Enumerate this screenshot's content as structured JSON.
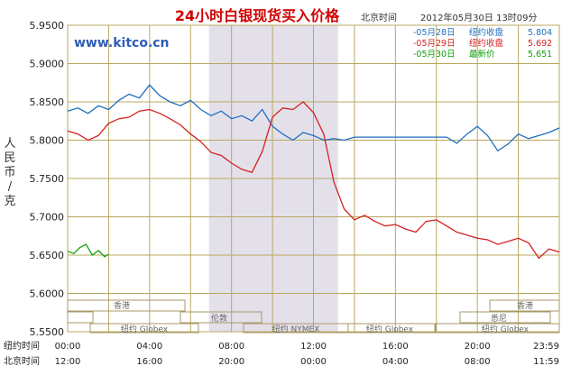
{
  "header": {
    "title": "24小时白银现货买入价格",
    "time_label": "北京时间",
    "timestamp": "2012年05月30日 13时09分"
  },
  "brand": {
    "site": "www.kitco.cn"
  },
  "ylabel": "人民币/克",
  "legend": [
    {
      "date": "05月28日",
      "label": "纽约收盘",
      "value": "5.804",
      "color": "#1f6fbf"
    },
    {
      "date": "05月29日",
      "label": "纽约收盘",
      "value": "5.692",
      "color": "#d42020"
    },
    {
      "date": "05月30日",
      "label": "最新价",
      "value": "5.651",
      "color": "#10a010"
    }
  ],
  "markets": {
    "hongkong": "香港",
    "ny_globex": "纽约 Globex",
    "london": "伦敦",
    "ny_nymex": "纽约 NYMEX",
    "sydney": "悉尼"
  },
  "xaxis": {
    "row1_label": "纽约时间",
    "row2_label": "北京时间",
    "row1": [
      "00:00",
      "04:00",
      "08:00",
      "12:00",
      "16:00",
      "20:00",
      "23:59"
    ],
    "row2": [
      "12:00",
      "16:00",
      "20:00",
      "00:00",
      "04:00",
      "08:00",
      "11:59"
    ]
  },
  "chart_data": {
    "type": "line",
    "title": "24小时白银现货买入价格",
    "ylabel": "人民币/克",
    "ylim": [
      5.55,
      5.95
    ],
    "xlim": [
      0,
      24
    ],
    "x_unit": "hours (New York time, 00:00–23:59)",
    "yticks": [
      "5.9500",
      "5.9000",
      "5.8500",
      "5.8000",
      "5.7500",
      "5.7000",
      "5.6500",
      "5.6000",
      "5.5500"
    ],
    "grid": true,
    "shaded_region": {
      "from": 6.9,
      "to": 13.2
    },
    "series": [
      {
        "name": "05月28日",
        "color": "#1f6fbf",
        "points": [
          [
            0,
            5.838
          ],
          [
            0.5,
            5.842
          ],
          [
            1,
            5.835
          ],
          [
            1.5,
            5.845
          ],
          [
            2,
            5.84
          ],
          [
            2.5,
            5.852
          ],
          [
            3,
            5.86
          ],
          [
            3.5,
            5.855
          ],
          [
            4,
            5.872
          ],
          [
            4.5,
            5.858
          ],
          [
            5,
            5.85
          ],
          [
            5.5,
            5.845
          ],
          [
            6,
            5.852
          ],
          [
            6.5,
            5.84
          ],
          [
            7,
            5.832
          ],
          [
            7.5,
            5.838
          ],
          [
            8,
            5.828
          ],
          [
            8.5,
            5.832
          ],
          [
            9,
            5.825
          ],
          [
            9.5,
            5.84
          ],
          [
            10,
            5.818
          ],
          [
            10.5,
            5.808
          ],
          [
            11,
            5.8
          ],
          [
            11.5,
            5.81
          ],
          [
            12,
            5.806
          ],
          [
            12.5,
            5.8
          ],
          [
            13,
            5.802
          ],
          [
            13.5,
            5.8
          ],
          [
            14,
            5.804
          ],
          [
            15,
            5.804
          ],
          [
            16,
            5.804
          ],
          [
            17,
            5.804
          ],
          [
            18,
            5.804
          ],
          [
            18.5,
            5.804
          ],
          [
            19,
            5.796
          ],
          [
            19.5,
            5.808
          ],
          [
            20,
            5.818
          ],
          [
            20.5,
            5.806
          ],
          [
            21,
            5.786
          ],
          [
            21.5,
            5.795
          ],
          [
            22,
            5.808
          ],
          [
            22.5,
            5.802
          ],
          [
            23,
            5.806
          ],
          [
            23.5,
            5.81
          ],
          [
            24,
            5.816
          ]
        ]
      },
      {
        "name": "05月29日",
        "color": "#d42020",
        "points": [
          [
            0,
            5.812
          ],
          [
            0.5,
            5.808
          ],
          [
            1,
            5.8
          ],
          [
            1.5,
            5.806
          ],
          [
            2,
            5.822
          ],
          [
            2.5,
            5.828
          ],
          [
            3,
            5.83
          ],
          [
            3.5,
            5.838
          ],
          [
            4,
            5.84
          ],
          [
            4.5,
            5.835
          ],
          [
            5,
            5.828
          ],
          [
            5.5,
            5.82
          ],
          [
            6,
            5.808
          ],
          [
            6.5,
            5.798
          ],
          [
            7,
            5.784
          ],
          [
            7.5,
            5.78
          ],
          [
            8,
            5.77
          ],
          [
            8.5,
            5.762
          ],
          [
            9,
            5.758
          ],
          [
            9.5,
            5.785
          ],
          [
            10,
            5.83
          ],
          [
            10.5,
            5.842
          ],
          [
            11,
            5.84
          ],
          [
            11.5,
            5.85
          ],
          [
            12,
            5.836
          ],
          [
            12.5,
            5.808
          ],
          [
            13,
            5.745
          ],
          [
            13.5,
            5.71
          ],
          [
            14,
            5.696
          ],
          [
            14.5,
            5.702
          ],
          [
            15,
            5.694
          ],
          [
            15.5,
            5.688
          ],
          [
            16,
            5.69
          ],
          [
            16.5,
            5.684
          ],
          [
            17,
            5.68
          ],
          [
            17.5,
            5.694
          ],
          [
            18,
            5.696
          ],
          [
            18.5,
            5.688
          ],
          [
            19,
            5.68
          ],
          [
            19.5,
            5.676
          ],
          [
            20,
            5.672
          ],
          [
            20.5,
            5.67
          ],
          [
            21,
            5.664
          ],
          [
            21.5,
            5.668
          ],
          [
            22,
            5.672
          ],
          [
            22.5,
            5.666
          ],
          [
            23,
            5.646
          ],
          [
            23.5,
            5.658
          ],
          [
            24,
            5.654
          ]
        ]
      },
      {
        "name": "05月30日",
        "color": "#10a010",
        "points": [
          [
            0,
            5.655
          ],
          [
            0.3,
            5.652
          ],
          [
            0.6,
            5.66
          ],
          [
            0.9,
            5.664
          ],
          [
            1.2,
            5.65
          ],
          [
            1.5,
            5.656
          ],
          [
            1.8,
            5.648
          ],
          [
            2,
            5.651
          ]
        ]
      }
    ]
  }
}
